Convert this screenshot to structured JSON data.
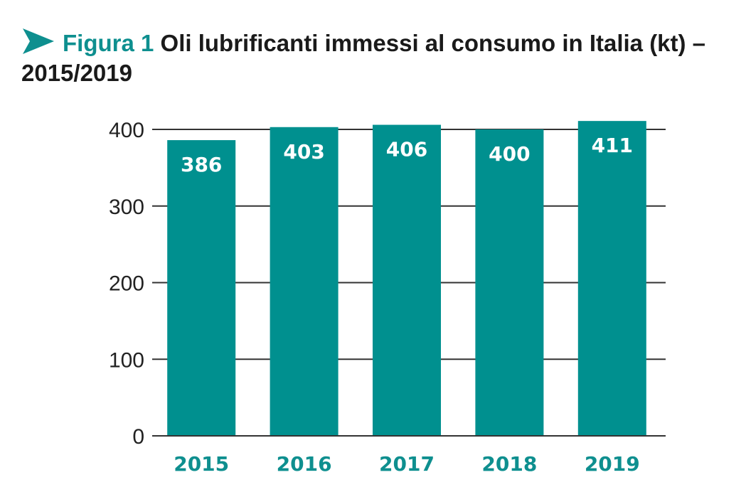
{
  "header": {
    "figure_label": "Figura 1",
    "title_text": "Oli lubrificanti immessi al consumo in Italia (kt) – 2015/2019",
    "icon": "arrow-right-icon"
  },
  "colors": {
    "bar": "#00908f",
    "label": "#0e8f8f",
    "grid": "#333333"
  },
  "chart_data": {
    "type": "bar",
    "title": "Figura 1 Oli lubrificanti immessi al consumo in Italia (kt) – 2015/2019",
    "categories": [
      "2015",
      "2016",
      "2017",
      "2018",
      "2019"
    ],
    "values": [
      386,
      403,
      406,
      400,
      411
    ],
    "data_labels": [
      "386",
      "403",
      "406",
      "400",
      "411"
    ],
    "yticks": [
      0,
      100,
      200,
      300,
      400
    ],
    "ylim": [
      0,
      400
    ],
    "xlabel": "",
    "ylabel": "",
    "grid": true,
    "legend": "none"
  }
}
